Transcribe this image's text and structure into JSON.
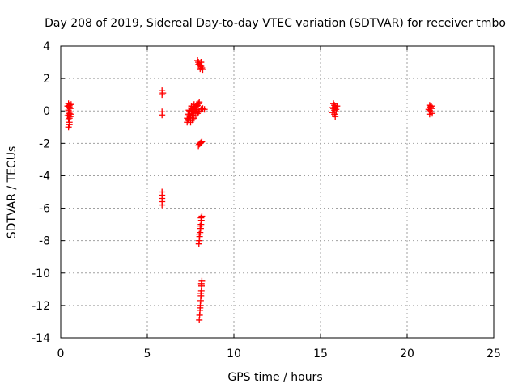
{
  "chart_data": {
    "type": "scatter",
    "title": "Day 208 of 2019, Sidereal Day-to-day VTEC variation (SDTVAR) for receiver tmbo",
    "xlabel": "GPS time / hours",
    "ylabel": "SDTVAR / TECUs",
    "xlim": [
      0,
      25
    ],
    "ylim": [
      -14,
      4
    ],
    "xticks": [
      "0",
      "5",
      "10",
      "15",
      "20",
      "25"
    ],
    "yticks": [
      "4",
      "2",
      "0",
      "-2",
      "-4",
      "-6",
      "-8",
      "-10",
      "-12",
      "-14"
    ],
    "grid": true,
    "marker": "plus",
    "color": "#ff0000",
    "series": [
      {
        "values": [
          [
            0.45,
            0.45
          ],
          [
            0.5,
            0.35
          ],
          [
            0.5,
            0.25
          ],
          [
            0.55,
            0.15
          ],
          [
            0.45,
            0.05
          ],
          [
            0.5,
            -0.05
          ],
          [
            0.5,
            -0.15
          ],
          [
            0.45,
            -0.25
          ],
          [
            0.55,
            -0.35
          ],
          [
            0.5,
            -0.45
          ],
          [
            0.45,
            -0.55
          ],
          [
            0.5,
            -0.7
          ],
          [
            0.5,
            -0.85
          ],
          [
            0.45,
            -1.0
          ],
          [
            0.4,
            0.3
          ],
          [
            0.6,
            0.4
          ],
          [
            0.4,
            -0.3
          ],
          [
            0.6,
            -0.2
          ],
          [
            5.85,
            1.25
          ],
          [
            5.85,
            1.0
          ],
          [
            5.9,
            1.1
          ],
          [
            5.85,
            -0.05
          ],
          [
            5.85,
            -0.25
          ],
          [
            5.85,
            -5.0
          ],
          [
            5.85,
            -5.2
          ],
          [
            5.85,
            -5.4
          ],
          [
            5.85,
            -5.6
          ],
          [
            5.85,
            -5.8
          ],
          [
            7.3,
            -0.7
          ],
          [
            7.35,
            -0.5
          ],
          [
            7.4,
            -0.6
          ],
          [
            7.45,
            -0.3
          ],
          [
            7.5,
            -0.4
          ],
          [
            7.55,
            -0.15
          ],
          [
            7.6,
            -0.25
          ],
          [
            7.65,
            0.0
          ],
          [
            7.7,
            -0.1
          ],
          [
            7.75,
            0.1
          ],
          [
            7.8,
            0.2
          ],
          [
            7.85,
            0.3
          ],
          [
            7.9,
            0.35
          ],
          [
            7.95,
            0.45
          ],
          [
            8.0,
            0.55
          ],
          [
            7.35,
            -0.2
          ],
          [
            7.45,
            0.0
          ],
          [
            7.55,
            0.15
          ],
          [
            7.65,
            0.25
          ],
          [
            7.5,
            -0.7
          ],
          [
            7.6,
            -0.55
          ],
          [
            7.7,
            -0.45
          ],
          [
            7.8,
            -0.3
          ],
          [
            7.9,
            -0.15
          ],
          [
            8.0,
            0.0
          ],
          [
            8.1,
            0.1
          ],
          [
            8.2,
            0.15
          ],
          [
            8.3,
            0.1
          ],
          [
            7.4,
            0.05
          ],
          [
            7.55,
            0.3
          ],
          [
            7.7,
            0.4
          ],
          [
            7.85,
            0.1
          ],
          [
            7.95,
            -0.05
          ],
          [
            7.3,
            -0.45
          ],
          [
            7.4,
            -0.3
          ],
          [
            7.6,
            0.1
          ],
          [
            7.9,
            3.1
          ],
          [
            7.95,
            3.0
          ],
          [
            8.0,
            2.9
          ],
          [
            8.05,
            2.8
          ],
          [
            8.1,
            2.75
          ],
          [
            8.15,
            2.65
          ],
          [
            8.2,
            2.55
          ],
          [
            7.95,
            2.85
          ],
          [
            8.05,
            2.6
          ],
          [
            8.1,
            3.0
          ],
          [
            7.95,
            -2.15
          ],
          [
            8.0,
            -2.05
          ],
          [
            8.05,
            -2.0
          ],
          [
            8.1,
            -1.95
          ],
          [
            8.15,
            -1.9
          ],
          [
            8.15,
            -6.5
          ],
          [
            8.12,
            -6.75
          ],
          [
            8.1,
            -7.0
          ],
          [
            8.08,
            -7.25
          ],
          [
            8.05,
            -7.5
          ],
          [
            8.02,
            -7.75
          ],
          [
            8.0,
            -8.0
          ],
          [
            7.98,
            -8.2
          ],
          [
            8.1,
            -6.6
          ],
          [
            8.05,
            -7.1
          ],
          [
            8.0,
            -7.6
          ],
          [
            8.15,
            -10.5
          ],
          [
            8.13,
            -10.8
          ],
          [
            8.12,
            -11.1
          ],
          [
            8.1,
            -11.4
          ],
          [
            8.08,
            -11.7
          ],
          [
            8.06,
            -12.0
          ],
          [
            8.04,
            -12.3
          ],
          [
            8.02,
            -12.6
          ],
          [
            8.0,
            -12.9
          ],
          [
            8.12,
            -10.65
          ],
          [
            8.09,
            -11.25
          ],
          [
            8.05,
            -12.15
          ],
          [
            15.75,
            0.45
          ],
          [
            15.8,
            0.35
          ],
          [
            15.85,
            0.25
          ],
          [
            15.75,
            0.15
          ],
          [
            15.8,
            0.05
          ],
          [
            15.9,
            -0.05
          ],
          [
            15.7,
            -0.1
          ],
          [
            15.8,
            -0.2
          ],
          [
            15.85,
            -0.35
          ],
          [
            15.95,
            0.3
          ],
          [
            15.7,
            0.2
          ],
          [
            15.9,
            0.1
          ],
          [
            21.3,
            0.35
          ],
          [
            21.35,
            0.25
          ],
          [
            21.4,
            0.15
          ],
          [
            21.3,
            0.05
          ],
          [
            21.35,
            -0.05
          ],
          [
            21.45,
            -0.15
          ],
          [
            21.3,
            -0.2
          ],
          [
            21.4,
            0.3
          ],
          [
            21.25,
            0.1
          ]
        ]
      }
    ]
  }
}
